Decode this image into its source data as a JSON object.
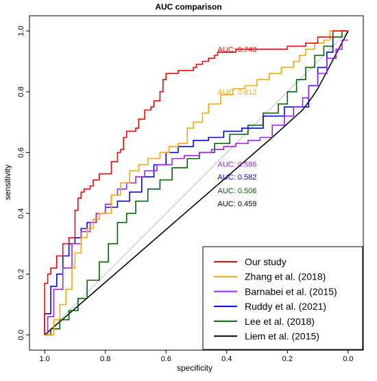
{
  "chart_data": {
    "type": "line",
    "title": "AUC comparison",
    "xlabel": "specificity",
    "ylabel": "sensitivity",
    "xlim": [
      1.05,
      -0.05
    ],
    "ylim": [
      -0.05,
      1.05
    ],
    "x_reversed": true,
    "x_ticks": [
      "1.0",
      "0.8",
      "0.6",
      "0.4",
      "0.2",
      "0.0"
    ],
    "x_tick_values": [
      1.0,
      0.8,
      0.6,
      0.4,
      0.2,
      0.0
    ],
    "y_ticks": [
      "0.0",
      "0.2",
      "0.4",
      "0.6",
      "0.8",
      "1.0"
    ],
    "y_tick_values": [
      0.0,
      0.2,
      0.4,
      0.6,
      0.8,
      1.0
    ],
    "grid": false,
    "diagonal_reference": true,
    "legend_position": "bottom-right",
    "series": [
      {
        "name": "Our study",
        "color": "#ff0000",
        "auc_label": "AUC: 0.743",
        "auc_at": [
          0.43,
          0.94
        ],
        "x": [
          1.0,
          1.0,
          0.99,
          0.99,
          0.98,
          0.98,
          0.96,
          0.96,
          0.94,
          0.94,
          0.92,
          0.92,
          0.9,
          0.9,
          0.89,
          0.89,
          0.88,
          0.88,
          0.87,
          0.87,
          0.85,
          0.85,
          0.84,
          0.84,
          0.82,
          0.82,
          0.78,
          0.78,
          0.76,
          0.76,
          0.75,
          0.75,
          0.74,
          0.74,
          0.73,
          0.73,
          0.7,
          0.7,
          0.69,
          0.69,
          0.67,
          0.67,
          0.65,
          0.65,
          0.64,
          0.64,
          0.62,
          0.62,
          0.61,
          0.61,
          0.6,
          0.6,
          0.58,
          0.58,
          0.56,
          0.56,
          0.53,
          0.53,
          0.52,
          0.52,
          0.51,
          0.51,
          0.5,
          0.5,
          0.48,
          0.48,
          0.46,
          0.46,
          0.44,
          0.44,
          0.43,
          0.43,
          0.41,
          0.41,
          0.39,
          0.39,
          0.37,
          0.37,
          0.35,
          0.35,
          0.32,
          0.32,
          0.28,
          0.28,
          0.24,
          0.24,
          0.2,
          0.2,
          0.14,
          0.14,
          0.1,
          0.1,
          0.05,
          0.05,
          0.0
        ],
        "y": [
          0.0,
          0.17,
          0.17,
          0.2,
          0.2,
          0.22,
          0.22,
          0.26,
          0.26,
          0.3,
          0.3,
          0.32,
          0.32,
          0.41,
          0.41,
          0.45,
          0.45,
          0.47,
          0.47,
          0.48,
          0.48,
          0.49,
          0.49,
          0.51,
          0.51,
          0.53,
          0.53,
          0.57,
          0.57,
          0.6,
          0.6,
          0.61,
          0.61,
          0.65,
          0.65,
          0.67,
          0.67,
          0.68,
          0.68,
          0.71,
          0.71,
          0.74,
          0.74,
          0.75,
          0.75,
          0.77,
          0.77,
          0.8,
          0.8,
          0.84,
          0.84,
          0.86,
          0.86,
          0.86,
          0.86,
          0.87,
          0.87,
          0.87,
          0.87,
          0.87,
          0.87,
          0.88,
          0.88,
          0.89,
          0.89,
          0.9,
          0.9,
          0.91,
          0.91,
          0.92,
          0.92,
          0.93,
          0.93,
          0.93,
          0.93,
          0.93,
          0.93,
          0.94,
          0.94,
          0.94,
          0.94,
          0.94,
          0.94,
          0.94,
          0.94,
          0.94,
          0.94,
          0.95,
          0.95,
          0.96,
          0.96,
          0.98,
          0.98,
          1.0,
          1.0
        ]
      },
      {
        "name": "Zhang et al. (2018)",
        "color": "#ffa500",
        "auc_label": "AUC: 0.612",
        "auc_at": [
          0.43,
          0.8
        ],
        "x": [
          1.0,
          0.97,
          0.97,
          0.95,
          0.95,
          0.93,
          0.93,
          0.91,
          0.91,
          0.9,
          0.9,
          0.88,
          0.88,
          0.86,
          0.86,
          0.84,
          0.84,
          0.82,
          0.82,
          0.78,
          0.78,
          0.75,
          0.75,
          0.72,
          0.72,
          0.69,
          0.69,
          0.66,
          0.66,
          0.62,
          0.62,
          0.59,
          0.59,
          0.56,
          0.56,
          0.53,
          0.53,
          0.51,
          0.51,
          0.48,
          0.48,
          0.46,
          0.46,
          0.42,
          0.42,
          0.38,
          0.38,
          0.34,
          0.34,
          0.3,
          0.3,
          0.26,
          0.26,
          0.22,
          0.22,
          0.18,
          0.18,
          0.16,
          0.16,
          0.14,
          0.14,
          0.11,
          0.11,
          0.08,
          0.08,
          0.06,
          0.06,
          0.0
        ],
        "y": [
          0.0,
          0.0,
          0.05,
          0.05,
          0.1,
          0.1,
          0.15,
          0.15,
          0.22,
          0.22,
          0.27,
          0.27,
          0.32,
          0.32,
          0.35,
          0.35,
          0.38,
          0.38,
          0.4,
          0.4,
          0.46,
          0.46,
          0.5,
          0.5,
          0.54,
          0.54,
          0.56,
          0.56,
          0.58,
          0.58,
          0.6,
          0.6,
          0.62,
          0.62,
          0.63,
          0.63,
          0.68,
          0.68,
          0.7,
          0.7,
          0.73,
          0.73,
          0.76,
          0.76,
          0.79,
          0.79,
          0.81,
          0.81,
          0.82,
          0.82,
          0.84,
          0.84,
          0.86,
          0.86,
          0.88,
          0.88,
          0.9,
          0.9,
          0.92,
          0.92,
          0.94,
          0.94,
          0.96,
          0.96,
          0.97,
          0.97,
          1.0,
          1.0
        ]
      },
      {
        "name": "Barnabei et al. (2015)",
        "color": "#a020f0",
        "auc_label": "AUC: 0.586",
        "auc_at": [
          0.43,
          0.562
        ],
        "x": [
          1.0,
          0.99,
          0.99,
          0.97,
          0.97,
          0.94,
          0.94,
          0.91,
          0.91,
          0.88,
          0.88,
          0.85,
          0.85,
          0.83,
          0.83,
          0.8,
          0.8,
          0.78,
          0.78,
          0.76,
          0.76,
          0.73,
          0.73,
          0.7,
          0.7,
          0.67,
          0.67,
          0.63,
          0.63,
          0.58,
          0.58,
          0.54,
          0.54,
          0.49,
          0.49,
          0.45,
          0.45,
          0.41,
          0.41,
          0.37,
          0.37,
          0.33,
          0.33,
          0.29,
          0.29,
          0.25,
          0.25,
          0.21,
          0.21,
          0.18,
          0.18,
          0.15,
          0.15,
          0.13,
          0.13,
          0.1,
          0.1,
          0.07,
          0.07,
          0.04,
          0.04,
          0.02,
          0.02,
          0.0
        ],
        "y": [
          0.0,
          0.0,
          0.06,
          0.06,
          0.15,
          0.15,
          0.22,
          0.22,
          0.3,
          0.3,
          0.34,
          0.34,
          0.37,
          0.37,
          0.4,
          0.4,
          0.43,
          0.43,
          0.46,
          0.46,
          0.48,
          0.48,
          0.5,
          0.5,
          0.52,
          0.52,
          0.54,
          0.54,
          0.56,
          0.56,
          0.58,
          0.58,
          0.59,
          0.59,
          0.6,
          0.6,
          0.61,
          0.61,
          0.62,
          0.62,
          0.63,
          0.63,
          0.64,
          0.64,
          0.65,
          0.65,
          0.69,
          0.69,
          0.72,
          0.72,
          0.75,
          0.75,
          0.78,
          0.78,
          0.82,
          0.82,
          0.86,
          0.86,
          0.91,
          0.91,
          0.94,
          0.94,
          0.97,
          0.97
        ]
      },
      {
        "name": "Ruddy et al. (2021)",
        "color": "#0000ff",
        "auc_label": "AUC: 0.582",
        "auc_at": [
          0.43,
          0.52
        ],
        "x": [
          1.0,
          1.0,
          0.98,
          0.98,
          0.96,
          0.96,
          0.94,
          0.94,
          0.92,
          0.92,
          0.9,
          0.9,
          0.88,
          0.88,
          0.86,
          0.86,
          0.83,
          0.83,
          0.8,
          0.8,
          0.76,
          0.76,
          0.72,
          0.72,
          0.68,
          0.68,
          0.64,
          0.64,
          0.6,
          0.6,
          0.56,
          0.56,
          0.51,
          0.51,
          0.46,
          0.46,
          0.41,
          0.41,
          0.35,
          0.35,
          0.28,
          0.28,
          0.21,
          0.21,
          0.13,
          0.13,
          0.1,
          0.1,
          0.07,
          0.07,
          0.05,
          0.05,
          0.0
        ],
        "y": [
          0.0,
          0.07,
          0.07,
          0.16,
          0.16,
          0.2,
          0.2,
          0.26,
          0.26,
          0.3,
          0.3,
          0.32,
          0.32,
          0.35,
          0.35,
          0.37,
          0.37,
          0.4,
          0.4,
          0.42,
          0.42,
          0.44,
          0.44,
          0.47,
          0.47,
          0.52,
          0.52,
          0.56,
          0.56,
          0.6,
          0.6,
          0.62,
          0.62,
          0.64,
          0.64,
          0.65,
          0.65,
          0.67,
          0.67,
          0.68,
          0.68,
          0.72,
          0.72,
          0.75,
          0.75,
          0.82,
          0.82,
          0.88,
          0.88,
          0.93,
          0.93,
          1.0,
          1.0
        ]
      },
      {
        "name": "Lee et al. (2018)",
        "color": "#006400",
        "auc_label": "AUC: 0.506",
        "auc_at": [
          0.43,
          0.475
        ],
        "x": [
          1.0,
          0.98,
          0.98,
          0.95,
          0.95,
          0.92,
          0.92,
          0.89,
          0.89,
          0.86,
          0.86,
          0.82,
          0.82,
          0.79,
          0.79,
          0.76,
          0.76,
          0.73,
          0.73,
          0.7,
          0.7,
          0.66,
          0.66,
          0.62,
          0.62,
          0.58,
          0.58,
          0.53,
          0.53,
          0.49,
          0.49,
          0.44,
          0.44,
          0.39,
          0.39,
          0.33,
          0.33,
          0.28,
          0.28,
          0.23,
          0.23,
          0.2,
          0.2,
          0.17,
          0.17,
          0.14,
          0.14,
          0.11,
          0.11,
          0.08,
          0.08,
          0.05,
          0.05,
          0.02,
          0.02,
          0.0
        ],
        "y": [
          0.0,
          0.0,
          0.02,
          0.02,
          0.05,
          0.05,
          0.08,
          0.08,
          0.12,
          0.12,
          0.18,
          0.18,
          0.24,
          0.24,
          0.3,
          0.3,
          0.37,
          0.37,
          0.4,
          0.4,
          0.44,
          0.44,
          0.48,
          0.48,
          0.51,
          0.51,
          0.55,
          0.55,
          0.58,
          0.58,
          0.6,
          0.6,
          0.63,
          0.63,
          0.66,
          0.66,
          0.69,
          0.69,
          0.73,
          0.73,
          0.76,
          0.76,
          0.8,
          0.8,
          0.84,
          0.84,
          0.88,
          0.88,
          0.92,
          0.92,
          0.95,
          0.95,
          0.98,
          0.98,
          1.0,
          1.0
        ]
      },
      {
        "name": "Liem et al. (2015)",
        "color": "#000000",
        "auc_label": "AUC: 0.459",
        "auc_at": [
          0.43,
          0.432
        ],
        "x": [
          1.0,
          0.85,
          0.7,
          0.55,
          0.4,
          0.25,
          0.15,
          0.12,
          0.1,
          0.0
        ],
        "y": [
          0.0,
          0.13,
          0.26,
          0.39,
          0.52,
          0.65,
          0.74,
          0.78,
          0.81,
          1.0
        ]
      }
    ]
  }
}
